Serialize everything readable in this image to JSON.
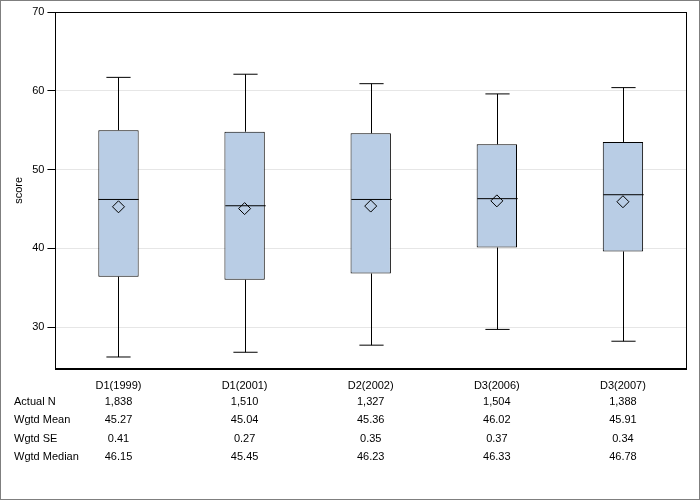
{
  "chart_data": {
    "type": "boxplot",
    "y_label": "score",
    "categories": [
      "D1(1999)",
      "D1(2001)",
      "D2(2002)",
      "D3(2006)",
      "D3(2007)"
    ],
    "whisker_low": [
      26.2,
      26.8,
      27.7,
      29.7,
      28.2
    ],
    "q1": [
      36.4,
      36.0,
      36.8,
      40.1,
      39.6
    ],
    "median": [
      46.2,
      45.4,
      46.2,
      46.3,
      46.8
    ],
    "q3": [
      55.0,
      54.8,
      54.6,
      53.2,
      53.5
    ],
    "whisker_high": [
      61.7,
      62.1,
      60.9,
      59.6,
      60.4
    ],
    "mean": [
      45.27,
      45.04,
      45.36,
      46.02,
      45.91
    ],
    "color": "#b9cde5",
    "marker": "diamond",
    "ylim": [
      24.7,
      70
    ],
    "yticks": [
      30,
      40,
      50,
      60,
      70
    ],
    "grid": true,
    "table": [
      {
        "label": "Actual N",
        "values": [
          1838,
          1510,
          1327,
          1504,
          1388
        ],
        "value_labels": [
          "1,838",
          "1,510",
          "1,327",
          "1,504",
          "1,388"
        ]
      },
      {
        "label": "Wgtd Mean",
        "values": [
          45.27,
          45.04,
          45.36,
          46.02,
          45.91
        ]
      },
      {
        "label": "Wgtd SE",
        "values": [
          0.41,
          0.27,
          0.35,
          0.37,
          0.34
        ]
      },
      {
        "label": "Wgtd Median",
        "values": [
          46.15,
          45.45,
          46.23,
          46.33,
          46.78
        ]
      }
    ]
  }
}
